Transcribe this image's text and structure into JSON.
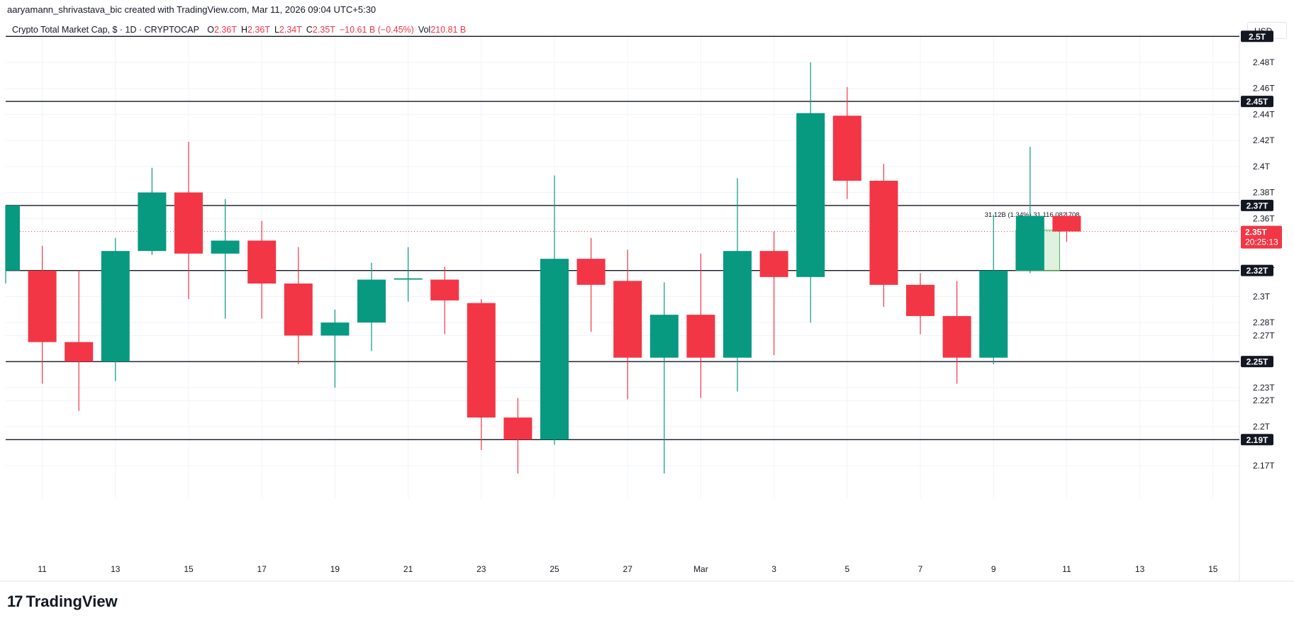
{
  "header": {
    "attribution": "aaryamann_shrivastava_bic created with TradingView.com, Mar 11, 2026 09:04 UTC+5:30",
    "symbol_line": "Crypto Total Market Cap, $ · 1D · CRYPTOCAP",
    "ohlc": [
      {
        "label": "O",
        "value": "2.36T"
      },
      {
        "label": "H",
        "value": "2.36T"
      },
      {
        "label": "L",
        "value": "2.34T"
      },
      {
        "label": "C",
        "value": "2.35T"
      },
      {
        "label": "",
        "value": "−10.61 B (−0.45%)"
      },
      {
        "label": "Vol",
        "value": "210.81 B"
      }
    ],
    "currency": "USD"
  },
  "footer": {
    "brand": "TradingView"
  },
  "colors": {
    "up": "#089981",
    "down": "#f23645",
    "grid": "#f0f3fa",
    "level": "#131722"
  },
  "chart_data": {
    "type": "candlestick",
    "x_tick_labels": [
      "11",
      "13",
      "15",
      "17",
      "19",
      "21",
      "23",
      "25",
      "27",
      "Mar",
      "3",
      "5",
      "7",
      "9",
      "11",
      "13",
      "15"
    ],
    "y_tick_labels": [
      "2.17T",
      "2.2T",
      "2.22T",
      "2.23T",
      "2.27T",
      "2.28T",
      "2.3T",
      "2.32T",
      "2.36T",
      "2.38T",
      "2.4T",
      "2.42T",
      "2.44T",
      "2.46T",
      "2.48T"
    ],
    "y_tick_values": [
      2.17,
      2.2,
      2.22,
      2.23,
      2.27,
      2.28,
      2.3,
      2.32,
      2.36,
      2.38,
      2.4,
      2.42,
      2.44,
      2.46,
      2.48
    ],
    "ylim": [
      2.155,
      2.505
    ],
    "candles": [
      {
        "date": "Feb 10",
        "o": 2.32,
        "h": 2.37,
        "l": 2.31,
        "c": 2.37
      },
      {
        "date": "Feb 11",
        "o": 2.32,
        "h": 2.339,
        "l": 2.233,
        "c": 2.265
      },
      {
        "date": "Feb 12",
        "o": 2.265,
        "h": 2.32,
        "l": 2.212,
        "c": 2.25
      },
      {
        "date": "Feb 13",
        "o": 2.25,
        "h": 2.345,
        "l": 2.235,
        "c": 2.335
      },
      {
        "date": "Feb 14",
        "o": 2.335,
        "h": 2.399,
        "l": 2.332,
        "c": 2.38
      },
      {
        "date": "Feb 15",
        "o": 2.38,
        "h": 2.419,
        "l": 2.298,
        "c": 2.333
      },
      {
        "date": "Feb 16",
        "o": 2.333,
        "h": 2.375,
        "l": 2.283,
        "c": 2.343
      },
      {
        "date": "Feb 17",
        "o": 2.343,
        "h": 2.358,
        "l": 2.283,
        "c": 2.31
      },
      {
        "date": "Feb 18",
        "o": 2.31,
        "h": 2.338,
        "l": 2.248,
        "c": 2.27
      },
      {
        "date": "Feb 19",
        "o": 2.27,
        "h": 2.29,
        "l": 2.23,
        "c": 2.28
      },
      {
        "date": "Feb 20",
        "o": 2.28,
        "h": 2.326,
        "l": 2.258,
        "c": 2.313
      },
      {
        "date": "Feb 21",
        "o": 2.313,
        "h": 2.338,
        "l": 2.296,
        "c": 2.314
      },
      {
        "date": "Feb 22",
        "o": 2.313,
        "h": 2.323,
        "l": 2.271,
        "c": 2.297
      },
      {
        "date": "Feb 23",
        "o": 2.295,
        "h": 2.298,
        "l": 2.182,
        "c": 2.207
      },
      {
        "date": "Feb 24",
        "o": 2.207,
        "h": 2.222,
        "l": 2.164,
        "c": 2.19
      },
      {
        "date": "Feb 25",
        "o": 2.19,
        "h": 2.393,
        "l": 2.186,
        "c": 2.329
      },
      {
        "date": "Feb 26",
        "o": 2.329,
        "h": 2.345,
        "l": 2.273,
        "c": 2.309
      },
      {
        "date": "Feb 27",
        "o": 2.312,
        "h": 2.336,
        "l": 2.221,
        "c": 2.253
      },
      {
        "date": "Feb 28",
        "o": 2.253,
        "h": 2.311,
        "l": 2.164,
        "c": 2.286
      },
      {
        "date": "Mar 1",
        "o": 2.286,
        "h": 2.333,
        "l": 2.222,
        "c": 2.253
      },
      {
        "date": "Mar 2",
        "o": 2.253,
        "h": 2.391,
        "l": 2.227,
        "c": 2.335
      },
      {
        "date": "Mar 3",
        "o": 2.335,
        "h": 2.35,
        "l": 2.255,
        "c": 2.315
      },
      {
        "date": "Mar 4",
        "o": 2.315,
        "h": 2.48,
        "l": 2.28,
        "c": 2.441
      },
      {
        "date": "Mar 5",
        "o": 2.439,
        "h": 2.461,
        "l": 2.375,
        "c": 2.389
      },
      {
        "date": "Mar 6",
        "o": 2.389,
        "h": 2.402,
        "l": 2.292,
        "c": 2.309
      },
      {
        "date": "Mar 7",
        "o": 2.309,
        "h": 2.318,
        "l": 2.271,
        "c": 2.285
      },
      {
        "date": "Mar 8",
        "o": 2.285,
        "h": 2.312,
        "l": 2.233,
        "c": 2.253
      },
      {
        "date": "Mar 9",
        "o": 2.253,
        "h": 2.363,
        "l": 2.248,
        "c": 2.32
      },
      {
        "date": "Mar 10",
        "o": 2.32,
        "h": 2.415,
        "l": 2.318,
        "c": 2.362
      },
      {
        "date": "Mar 11",
        "o": 2.362,
        "h": 2.365,
        "l": 2.342,
        "c": 2.35
      }
    ],
    "horizontal_levels": [
      {
        "value": 2.5,
        "label": "2.5T"
      },
      {
        "value": 2.45,
        "label": "2.45T"
      },
      {
        "value": 2.37,
        "label": "2.37T"
      },
      {
        "value": 2.32,
        "label": "2.32T"
      },
      {
        "value": 2.25,
        "label": "2.25T"
      },
      {
        "value": 2.19,
        "label": "2.19T"
      }
    ],
    "last_price": {
      "value": 2.35,
      "label": "2.35T",
      "countdown": "20:25:13"
    },
    "annotation": {
      "text": "31.12B (1.34%) 31,116,082,708",
      "from": 2.32,
      "to": 2.351
    }
  }
}
